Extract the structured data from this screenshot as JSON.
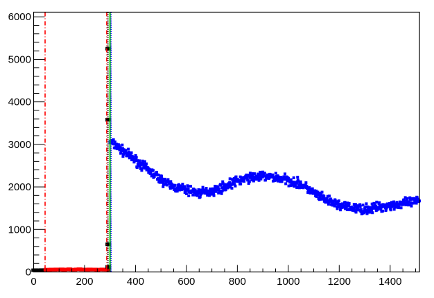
{
  "chart_data": {
    "type": "scatter",
    "title": "",
    "xlabel": "",
    "ylabel": "",
    "xlim": [
      0,
      1515
    ],
    "ylim": [
      0,
      6110
    ],
    "grid": false,
    "x_ticks": [
      "0",
      "200",
      "400",
      "600",
      "800",
      "1000",
      "1200",
      "1400"
    ],
    "y_ticks": [
      "0",
      "1000",
      "2000",
      "3000",
      "4000",
      "5000",
      "6000"
    ],
    "series": [
      {
        "color": "#000000",
        "points": [
          [
            2,
            40
          ],
          [
            8,
            42
          ],
          [
            14,
            38
          ],
          [
            20,
            41
          ],
          [
            26,
            40
          ],
          [
            32,
            43
          ],
          [
            38,
            40
          ],
          [
            44,
            42
          ]
        ]
      },
      {
        "color": "#ff0000",
        "points": [
          [
            50,
            55
          ],
          [
            60,
            50
          ],
          [
            70,
            58
          ],
          [
            80,
            52
          ],
          [
            90,
            60
          ],
          [
            100,
            55
          ],
          [
            110,
            62
          ],
          [
            120,
            50
          ],
          [
            130,
            58
          ],
          [
            140,
            65
          ],
          [
            150,
            55
          ],
          [
            160,
            52
          ],
          [
            170,
            60
          ],
          [
            180,
            66
          ],
          [
            190,
            55
          ],
          [
            200,
            58
          ],
          [
            210,
            52
          ],
          [
            220,
            60
          ],
          [
            230,
            55
          ],
          [
            240,
            58
          ],
          [
            250,
            50
          ],
          [
            260,
            56
          ],
          [
            270,
            60
          ],
          [
            280,
            54
          ],
          [
            288,
            55
          ]
        ]
      },
      {
        "color": "#000000",
        "points": [
          [
            293,
            5250
          ],
          [
            293,
            3580
          ],
          [
            293,
            650
          ],
          [
            293,
            120
          ]
        ]
      },
      {
        "color": "#0000ff",
        "points": [
          [
            300,
            3070
          ],
          [
            350,
            2850
          ],
          [
            400,
            2630
          ],
          [
            450,
            2400
          ],
          [
            500,
            2170
          ],
          [
            550,
            2000
          ],
          [
            600,
            1930
          ],
          [
            650,
            1850
          ],
          [
            700,
            1900
          ],
          [
            750,
            2010
          ],
          [
            800,
            2140
          ],
          [
            850,
            2220
          ],
          [
            900,
            2250
          ],
          [
            950,
            2220
          ],
          [
            1000,
            2160
          ],
          [
            1050,
            2060
          ],
          [
            1100,
            1860
          ],
          [
            1150,
            1680
          ],
          [
            1200,
            1570
          ],
          [
            1250,
            1500
          ],
          [
            1300,
            1470
          ],
          [
            1350,
            1520
          ],
          [
            1400,
            1570
          ],
          [
            1450,
            1600
          ],
          [
            1515,
            1670
          ]
        ]
      }
    ],
    "vertical_lines": [
      {
        "x": 45,
        "color": "#ff0000",
        "style": "dash-dot"
      },
      {
        "x": 287,
        "color": "#ff0000",
        "style": "dash-dot"
      },
      {
        "x": 292,
        "color": "#000000",
        "style": "dotted"
      },
      {
        "x": 300,
        "color": "#00cc00",
        "style": "solid"
      },
      {
        "x": 304,
        "color": "#0000ff",
        "style": "dotted"
      }
    ]
  }
}
